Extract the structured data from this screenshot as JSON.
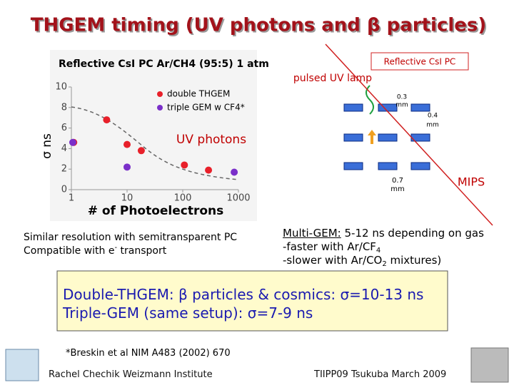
{
  "header": {
    "title": "THGEM timing (UV photons and β particles)"
  },
  "chart_data": {
    "type": "scatter",
    "title": "Reflective CsI PC  Ar/CH4 (95:5) 1 atm",
    "x_label": "# of Photoelectrons",
    "y_label": "σ ns",
    "log_x": true,
    "xlim": [
      1,
      1000
    ],
    "xticks": [
      1,
      10,
      100,
      1000
    ],
    "ylim": [
      0,
      10
    ],
    "yticks": [
      0,
      2,
      4,
      6,
      8,
      10
    ],
    "series": [
      {
        "name": "double THGEM",
        "color": "#e8202a",
        "x": [
          1.1,
          4.3,
          10,
          18,
          107,
          290
        ],
        "values": [
          4.6,
          6.8,
          4.4,
          3.8,
          2.4,
          1.9
        ]
      },
      {
        "name": "triple GEM w CF4*",
        "color": "#7a2fc9",
        "x": [
          1.06,
          10,
          840
        ],
        "values": [
          4.6,
          2.2,
          1.7
        ]
      }
    ]
  },
  "diagram": {
    "photocathode": "Reflective CsI PC",
    "lamp": "pulsed UV lamp",
    "gap1": "0.3",
    "gap2": "0.4",
    "gap3": "0.7",
    "unit": "mm",
    "mips": "MIPS",
    "uv": "UV photons"
  },
  "notes": {
    "line1": "Similar resolution with semitransparent PC",
    "line2": "Compatible with e",
    "line2_sup": "-",
    "line2_end": " transport"
  },
  "multigem": {
    "head": "Multi-GEM:",
    "line1": "5-12 ns depending on gas",
    "line2": "-faster with Ar/CF",
    "line2_sub": "4",
    "line3": "-slower with Ar/CO",
    "line3_sub": "2",
    "line3_end": " mixtures)"
  },
  "summary": {
    "line1": "Double-THGEM: β particles & cosmics: σ=10-13 ns",
    "line2": "Triple-GEM (same setup): σ=7-9 ns"
  },
  "footer": {
    "reference": "*Breskin et al NIM A483 (2002) 670",
    "author": "Rachel Chechik   Weizmann Institute",
    "event": "TIIPP09 Tsukuba March 2009"
  }
}
